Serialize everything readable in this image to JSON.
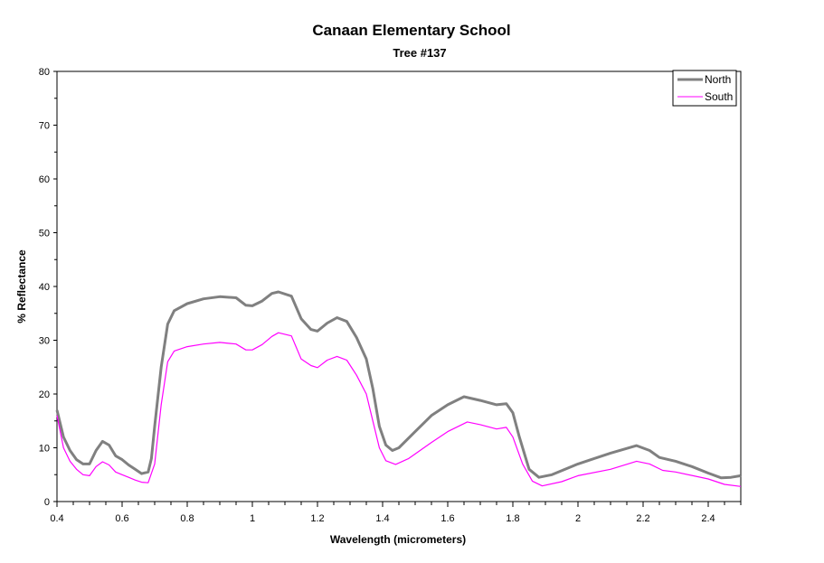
{
  "chart_data": {
    "type": "line",
    "title": "Canaan Elementary School",
    "subtitle": "Tree #137",
    "xlabel": "Wavelength (micrometers)",
    "ylabel": "% Reflectance",
    "xlim": [
      0.4,
      2.5
    ],
    "ylim": [
      0,
      80
    ],
    "xticks": [
      "0.4",
      "0.6",
      "0.8",
      "1",
      "1.2",
      "1.4",
      "1.6",
      "1.8",
      "2",
      "2.2",
      "2.4"
    ],
    "yticks": [
      "0",
      "10",
      "20",
      "30",
      "40",
      "50",
      "60",
      "70",
      "80"
    ],
    "grid": false,
    "legend_position": "top-right",
    "series": [
      {
        "name": "North",
        "color": "#808080",
        "x": [
          0.4,
          0.42,
          0.44,
          0.46,
          0.48,
          0.5,
          0.52,
          0.54,
          0.56,
          0.58,
          0.6,
          0.62,
          0.64,
          0.66,
          0.68,
          0.69,
          0.7,
          0.72,
          0.74,
          0.76,
          0.8,
          0.85,
          0.9,
          0.95,
          0.98,
          1.0,
          1.03,
          1.06,
          1.08,
          1.12,
          1.15,
          1.18,
          1.2,
          1.23,
          1.26,
          1.29,
          1.32,
          1.35,
          1.37,
          1.39,
          1.41,
          1.43,
          1.45,
          1.5,
          1.55,
          1.6,
          1.65,
          1.7,
          1.75,
          1.78,
          1.8,
          1.82,
          1.85,
          1.88,
          1.92,
          2.0,
          2.1,
          2.18,
          2.22,
          2.25,
          2.3,
          2.35,
          2.4,
          2.44,
          2.47,
          2.5
        ],
        "y": [
          17,
          12,
          9.5,
          7.8,
          7,
          7,
          9.5,
          11.2,
          10.5,
          8.5,
          7.8,
          6.8,
          6,
          5.2,
          5.5,
          8,
          14,
          25,
          33,
          35.5,
          36.8,
          37.7,
          38.1,
          37.9,
          36.5,
          36.4,
          37.3,
          38.7,
          39,
          38.2,
          34,
          32,
          31.7,
          33.2,
          34.2,
          33.5,
          30.5,
          26.5,
          21,
          14,
          10.5,
          9.5,
          10,
          13,
          16,
          18,
          19.5,
          18.8,
          18,
          18.2,
          16.5,
          12,
          6,
          4.5,
          5,
          7,
          9,
          10.4,
          9.5,
          8.2,
          7.5,
          6.5,
          5.3,
          4.4,
          4.5,
          4.8
        ]
      },
      {
        "name": "South",
        "color": "#ff00ff",
        "x": [
          0.4,
          0.42,
          0.44,
          0.46,
          0.48,
          0.5,
          0.52,
          0.54,
          0.56,
          0.58,
          0.6,
          0.62,
          0.64,
          0.66,
          0.68,
          0.7,
          0.72,
          0.74,
          0.76,
          0.8,
          0.85,
          0.9,
          0.95,
          0.98,
          1.0,
          1.03,
          1.06,
          1.08,
          1.12,
          1.15,
          1.18,
          1.2,
          1.23,
          1.26,
          1.29,
          1.32,
          1.35,
          1.37,
          1.39,
          1.41,
          1.44,
          1.48,
          1.55,
          1.6,
          1.66,
          1.7,
          1.75,
          1.78,
          1.8,
          1.83,
          1.86,
          1.89,
          1.95,
          2.0,
          2.1,
          2.18,
          2.22,
          2.26,
          2.3,
          2.4,
          2.45,
          2.5
        ],
        "y": [
          16,
          10,
          7.5,
          6,
          5,
          4.8,
          6.5,
          7.4,
          6.8,
          5.5,
          5,
          4.5,
          4,
          3.6,
          3.5,
          7,
          18,
          26,
          28,
          28.8,
          29.3,
          29.6,
          29.3,
          28.2,
          28.2,
          29.2,
          30.7,
          31.4,
          30.8,
          26.5,
          25.3,
          24.9,
          26.3,
          27,
          26.3,
          23.5,
          20,
          15,
          10,
          7.6,
          6.9,
          8,
          11,
          13,
          14.8,
          14.3,
          13.5,
          13.8,
          12,
          7,
          3.8,
          2.9,
          3.7,
          4.8,
          6,
          7.5,
          7,
          5.8,
          5.5,
          4.2,
          3.2,
          2.8
        ]
      }
    ]
  }
}
